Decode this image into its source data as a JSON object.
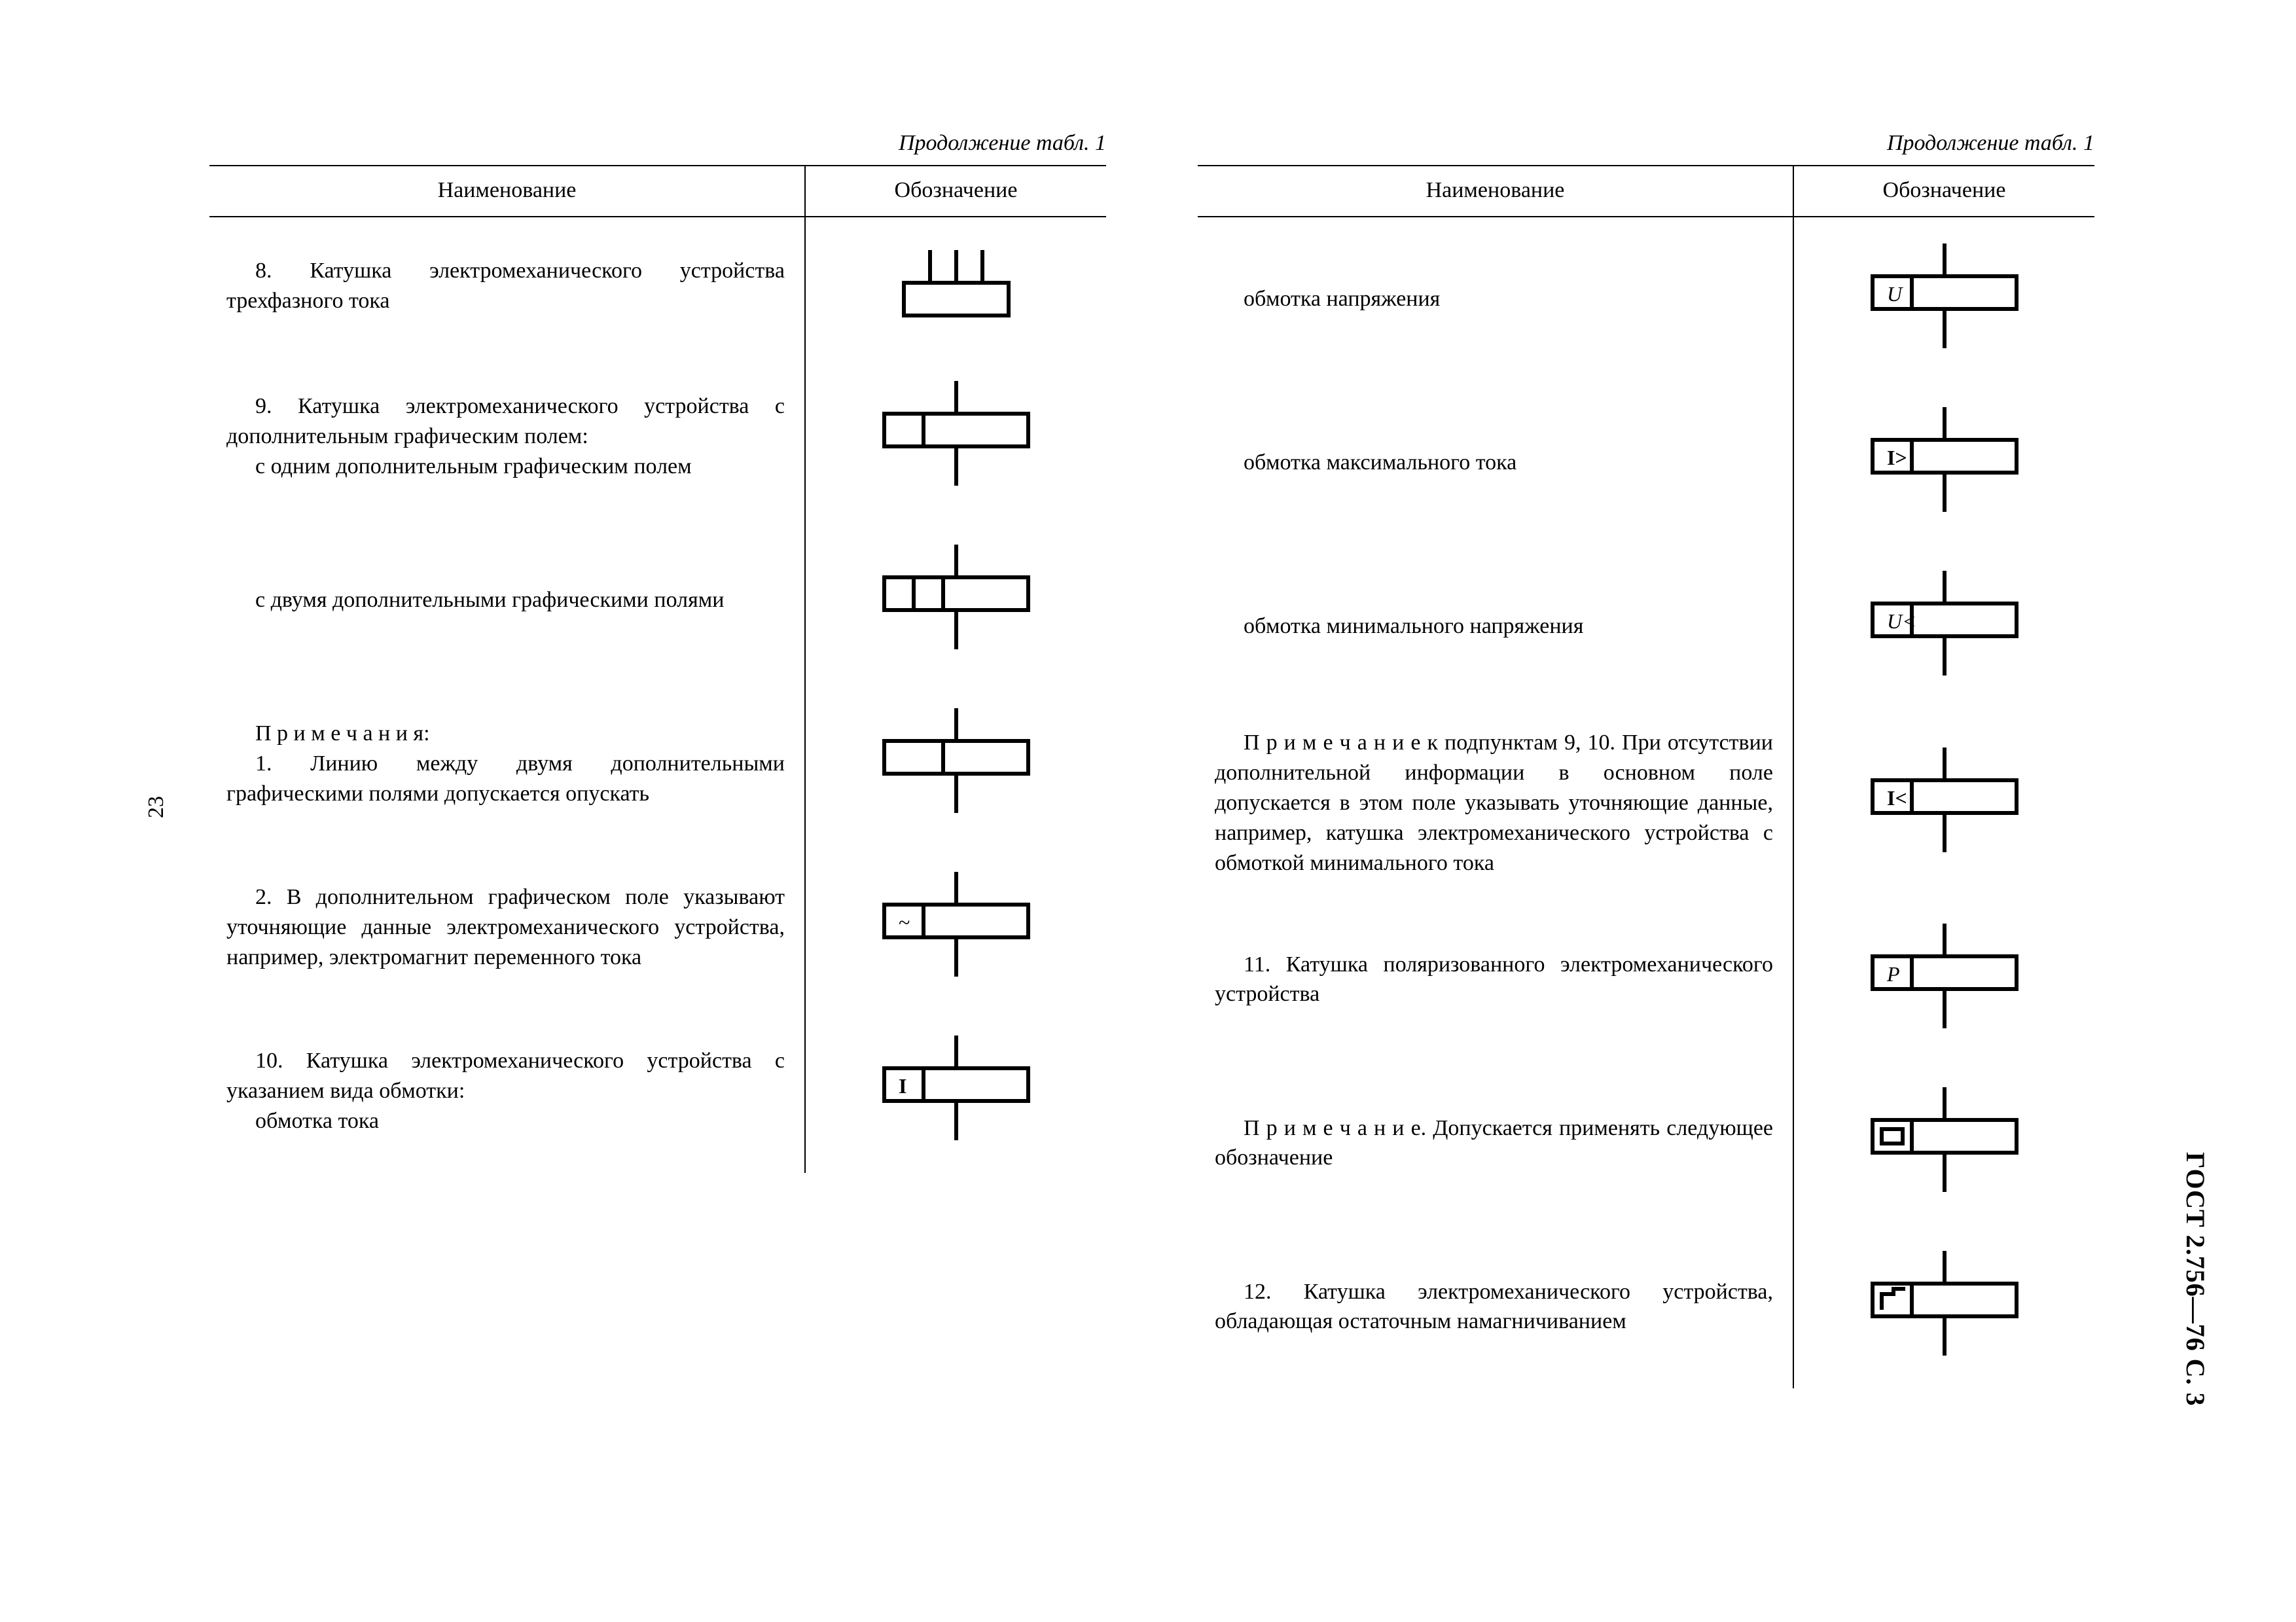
{
  "continuation_label": "Продолжение табл. 1",
  "headers": {
    "name": "Наименование",
    "symbol": "Обозначение"
  },
  "page_number_left": "23",
  "side_label": "ГОСТ 2.756—76 С. 3",
  "left_rows": [
    {
      "text": "8. Катушка электромеханического устройства трехфазного тока",
      "symbol": "threephase"
    },
    {
      "text": "9. Катушка электромеханического устройства с дополнительным графическим полем:\nс одним дополнительным графическим полем",
      "symbol": "onefield"
    },
    {
      "text": "с двумя дополнительными графическими полями",
      "symbol": "twofields"
    },
    {
      "text": "П р и м е ч а н и я:\n1. Линию между двумя дополнительными графическими полями допускается опускать",
      "symbol": "twofields_noline"
    },
    {
      "text": "2. В дополнительном графическом поле указывают уточняющие данные электромеханического устройства, например, электромагнит переменного тока",
      "symbol": "field_tilde"
    },
    {
      "text": "10. Катушка электромеханического устройства с указанием вида обмотки:\nобмотка тока",
      "symbol": "field_I"
    }
  ],
  "right_rows": [
    {
      "text": "обмотка напряжения",
      "symbol": "field_U"
    },
    {
      "text": "обмотка максимального тока",
      "symbol": "field_Igt"
    },
    {
      "text": "обмотка минимального напряжения",
      "symbol": "field_Ult"
    },
    {
      "text": "П р и м е ч а н и е к подпунктам 9, 10. При отсутствии дополнительной информации в основном поле допускается в этом поле указывать уточняющие данные, например, катушка электромеханического устройства с обмоткой минимального тока",
      "symbol": "field_Ilt"
    },
    {
      "text": "11. Катушка поляризованного электромеханического устройства",
      "symbol": "field_P"
    },
    {
      "text": "П р и м е ч а н и е. Допускается применять следующее обозначение",
      "symbol": "field_box"
    },
    {
      "text": "12. Катушка электромеханического устройства, обладающая остаточным намагничиванием",
      "symbol": "field_step"
    }
  ],
  "svg": {
    "stroke": "#000000",
    "stroke_width": 6,
    "font_family": "Times New Roman",
    "text_size": 32
  }
}
